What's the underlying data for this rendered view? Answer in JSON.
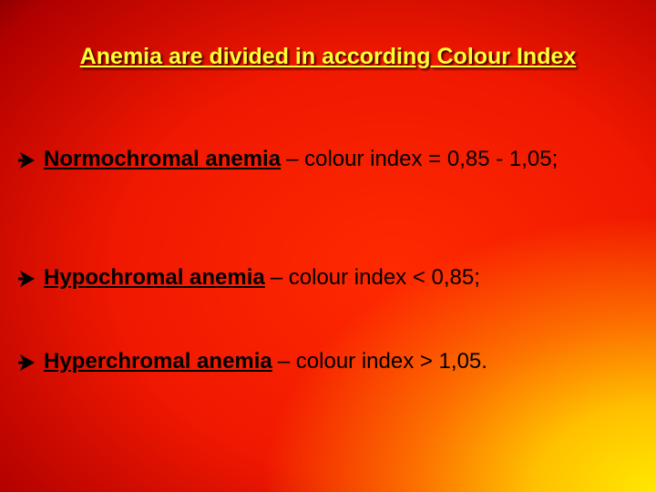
{
  "title": "Anemia are divided in according Colour Index",
  "bullets": [
    {
      "term": "Normochromal anemia",
      "text": "– colour index = 0,85 - 1,05;"
    },
    {
      "term": "Hypochromal anemia",
      "text": "– colour index < 0,85;"
    },
    {
      "term": "Hyperchromal anemia",
      "text": "– colour index > 1,05."
    }
  ]
}
